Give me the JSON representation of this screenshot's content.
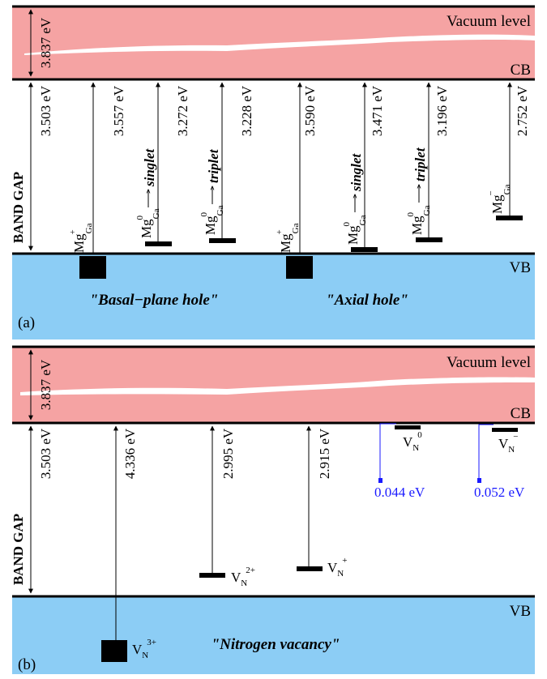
{
  "colors": {
    "vacuum": "#f5a3a3",
    "valence": "#8ccdf5",
    "line": "#000000",
    "blue": "#1a1aff"
  },
  "panels": [
    {
      "id": "a",
      "panel_label": "(a)",
      "vacuum_label": "Vacuum level",
      "cb_label": "CB",
      "vb_label": "VB",
      "band_gap_label": "BAND GAP",
      "affinity": "3.837 eV",
      "gap_value": "3.503 eV",
      "notes": [
        "\"Basal−plane hole\"",
        "\"Axial hole\""
      ],
      "levels": [
        {
          "energy": "3.557 eV",
          "species": "Mg",
          "sub": "Ga",
          "sup": "+",
          "arrow_text": ""
        },
        {
          "energy": "3.272 eV",
          "species": "Mg",
          "sub": "Ga",
          "sup": "0",
          "arrow_text": "singlet"
        },
        {
          "energy": "3.228 eV",
          "species": "Mg",
          "sub": "Ga",
          "sup": "0",
          "arrow_text": "triplet"
        },
        {
          "energy": "3.590 eV",
          "species": "Mg",
          "sub": "Ga",
          "sup": "+",
          "arrow_text": ""
        },
        {
          "energy": "3.471 eV",
          "species": "Mg",
          "sub": "Ga",
          "sup": "0",
          "arrow_text": "singlet"
        },
        {
          "energy": "3.196 eV",
          "species": "Mg",
          "sub": "Ga",
          "sup": "0",
          "arrow_text": "triplet"
        },
        {
          "energy": "2.752 eV",
          "species": "Mg",
          "sub": "Ga",
          "sup": "−",
          "arrow_text": ""
        }
      ]
    },
    {
      "id": "b",
      "panel_label": "(b)",
      "vacuum_label": "Vacuum level",
      "cb_label": "CB",
      "vb_label": "VB",
      "band_gap_label": "BAND GAP",
      "affinity": "3.837 eV",
      "gap_value": "3.503 eV",
      "note": "\"Nitrogen vacancy\"",
      "levels": [
        {
          "energy": "4.336 eV",
          "species": "V",
          "sub": "N",
          "sup": "3+"
        },
        {
          "energy": "2.995 eV",
          "species": "V",
          "sub": "N",
          "sup": "2+"
        },
        {
          "energy": "2.915 eV",
          "species": "V",
          "sub": "N",
          "sup": "+"
        },
        {
          "energy": "0.044 eV",
          "species": "V",
          "sub": "N",
          "sup": "0"
        },
        {
          "energy": "0.052 eV",
          "species": "V",
          "sub": "N",
          "sup": "−"
        }
      ]
    }
  ]
}
